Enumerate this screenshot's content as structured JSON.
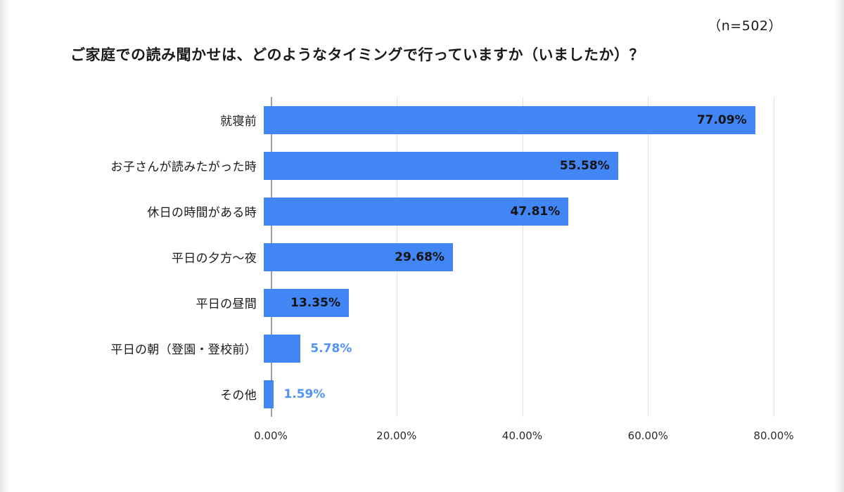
{
  "header": {
    "n_label": "（n=502）",
    "title": "ご家庭での読み聞かせは、どのようなタイミングで行っていますか（いましたか）？"
  },
  "chart_data": {
    "type": "bar",
    "orientation": "horizontal",
    "title": "ご家庭での読み聞かせは、どのようなタイミングで行っていますか（いましたか）？",
    "sample_size_label": "（n=502）",
    "categories": [
      "就寝前",
      "お子さんが読みたがった時",
      "休日の時間がある時",
      "平日の夕方〜夜",
      "平日の昼間",
      "平日の朝（登園・登校前）",
      "その他"
    ],
    "values": [
      77.09,
      55.58,
      47.81,
      29.68,
      13.35,
      5.78,
      1.59
    ],
    "value_labels": [
      "77.09%",
      "55.58%",
      "47.81%",
      "29.68%",
      "13.35%",
      "5.78%",
      "1.59%"
    ],
    "xlabel": "",
    "ylabel": "",
    "xlim": [
      0,
      80
    ],
    "x_ticks": [
      0,
      20,
      40,
      60,
      80
    ],
    "x_tick_labels": [
      "0.00%",
      "20.00%",
      "40.00%",
      "60.00%",
      "80.00%"
    ],
    "grid": true,
    "legend_position": "none",
    "bar_color": "#4285f4",
    "inside_label_color": "#141414",
    "outside_label_color": "#5193f6"
  }
}
